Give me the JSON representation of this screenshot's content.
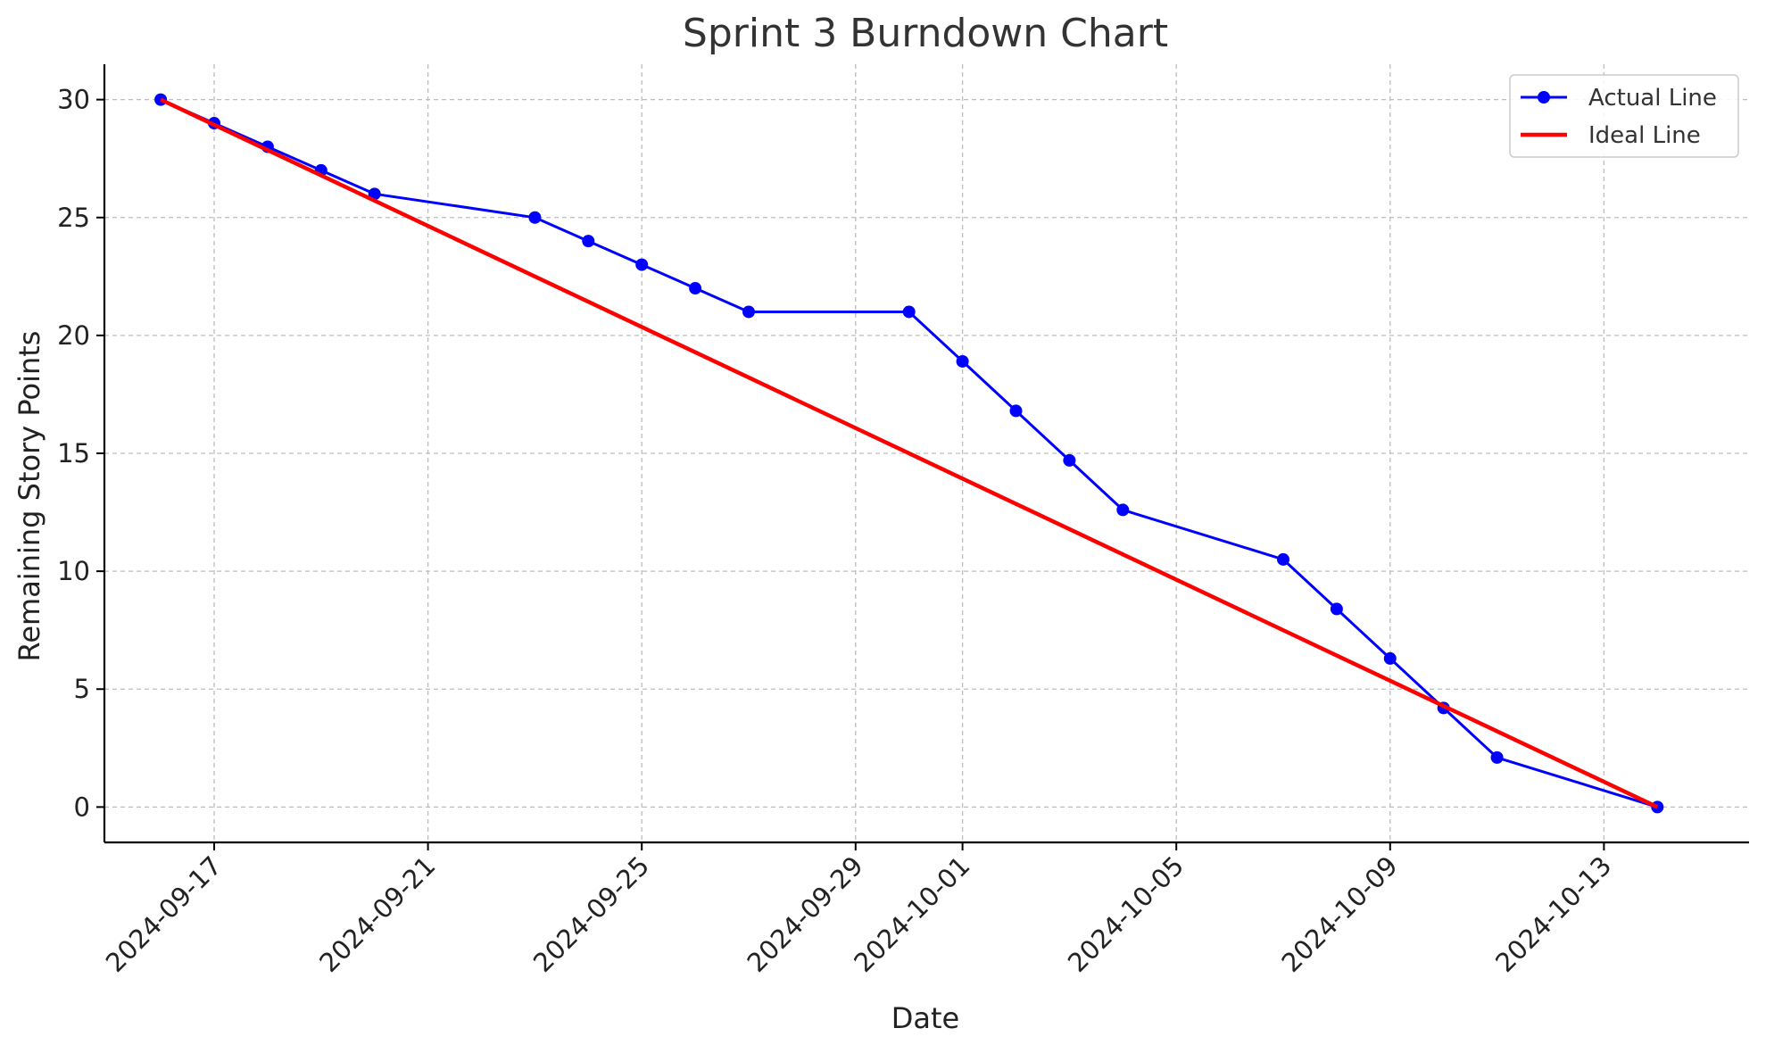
{
  "chart_data": {
    "type": "line",
    "title": "Sprint 3 Burndown Chart",
    "xlabel": "Date",
    "ylabel": "Remaining Story Points",
    "x_range": [
      "2024-09-13",
      "2024-10-14"
    ],
    "ylim": [
      -1.5,
      31.5
    ],
    "x_ticks": [
      "2024-09-17",
      "2024-09-21",
      "2024-09-25",
      "2024-09-29",
      "2024-10-01",
      "2024-10-05",
      "2024-10-09",
      "2024-10-13"
    ],
    "y_ticks": [
      0,
      5,
      10,
      15,
      20,
      25,
      30
    ],
    "grid": true,
    "legend_position": "top-right",
    "series": [
      {
        "name": "Actual Line",
        "color": "#0000ff",
        "marker": "circle",
        "points": [
          {
            "x": "2024-09-16",
            "y": 30
          },
          {
            "x": "2024-09-17",
            "y": 29
          },
          {
            "x": "2024-09-18",
            "y": 28
          },
          {
            "x": "2024-09-19",
            "y": 27
          },
          {
            "x": "2024-09-20",
            "y": 26
          },
          {
            "x": "2024-09-23",
            "y": 25
          },
          {
            "x": "2024-09-24",
            "y": 24
          },
          {
            "x": "2024-09-25",
            "y": 23
          },
          {
            "x": "2024-09-26",
            "y": 22
          },
          {
            "x": "2024-09-27",
            "y": 21
          },
          {
            "x": "2024-09-30",
            "y": 21
          },
          {
            "x": "2024-10-01",
            "y": 18.9
          },
          {
            "x": "2024-10-02",
            "y": 16.8
          },
          {
            "x": "2024-10-03",
            "y": 14.7
          },
          {
            "x": "2024-10-04",
            "y": 12.6
          },
          {
            "x": "2024-10-07",
            "y": 10.5
          },
          {
            "x": "2024-10-08",
            "y": 8.4
          },
          {
            "x": "2024-10-09",
            "y": 6.3
          },
          {
            "x": "2024-10-10",
            "y": 4.2
          },
          {
            "x": "2024-10-11",
            "y": 2.1
          },
          {
            "x": "2024-10-14",
            "y": 0
          }
        ]
      },
      {
        "name": "Ideal Line",
        "color": "#ff0000",
        "marker": "none",
        "points": [
          {
            "x": "2024-09-16",
            "y": 30
          },
          {
            "x": "2024-10-14",
            "y": 0
          }
        ]
      }
    ]
  }
}
